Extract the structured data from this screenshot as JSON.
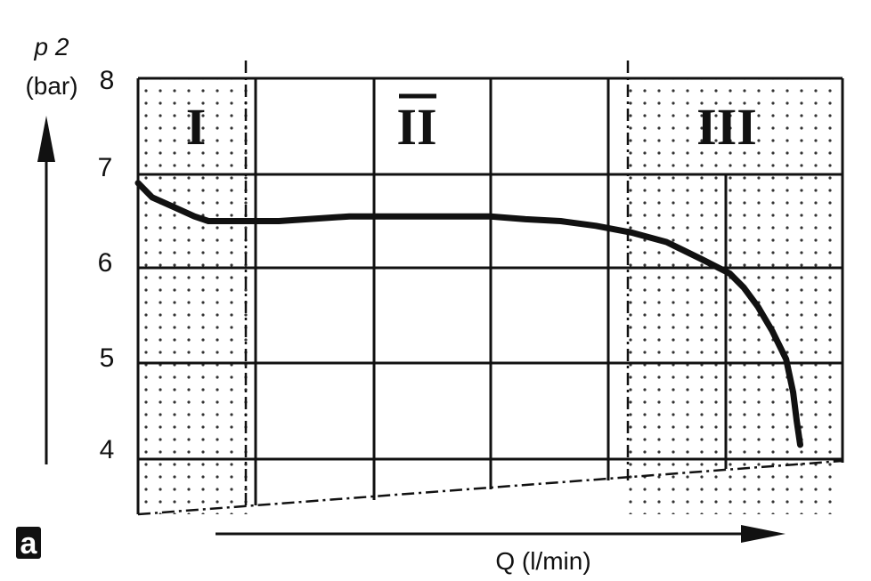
{
  "chart_data": {
    "type": "line",
    "ylabel_symbol": "p 2",
    "ylabel_unit": "(bar)",
    "xlabel": "Q (l/min)",
    "ylim": [
      4,
      8
    ],
    "y_ticks": [
      "8",
      "7",
      "6",
      "5",
      "4"
    ],
    "regions": [
      {
        "label": "I",
        "x_range": [
          0,
          0.09
        ],
        "shaded": true
      },
      {
        "label": "II",
        "x_range": [
          0.09,
          0.7
        ],
        "shaded": false
      },
      {
        "label": "III",
        "x_range": [
          0.7,
          1.0
        ],
        "shaded": true
      }
    ],
    "series": [
      {
        "x": [
          0.0,
          0.02,
          0.05,
          0.08,
          0.1,
          0.15,
          0.2,
          0.3,
          0.4,
          0.5,
          0.55,
          0.6,
          0.65,
          0.7,
          0.75,
          0.8,
          0.84,
          0.86,
          0.88,
          0.9,
          0.92,
          0.93,
          0.935,
          0.94
        ],
        "y": [
          6.9,
          6.75,
          6.65,
          6.55,
          6.5,
          6.5,
          6.5,
          6.55,
          6.55,
          6.55,
          6.52,
          6.5,
          6.45,
          6.38,
          6.28,
          6.1,
          5.95,
          5.8,
          5.6,
          5.35,
          5.05,
          4.7,
          4.4,
          4.15
        ]
      }
    ],
    "grid": true,
    "panel_label": "a",
    "colors": {
      "line": "#111111",
      "dots": "#333333",
      "badge": "#111111"
    }
  }
}
